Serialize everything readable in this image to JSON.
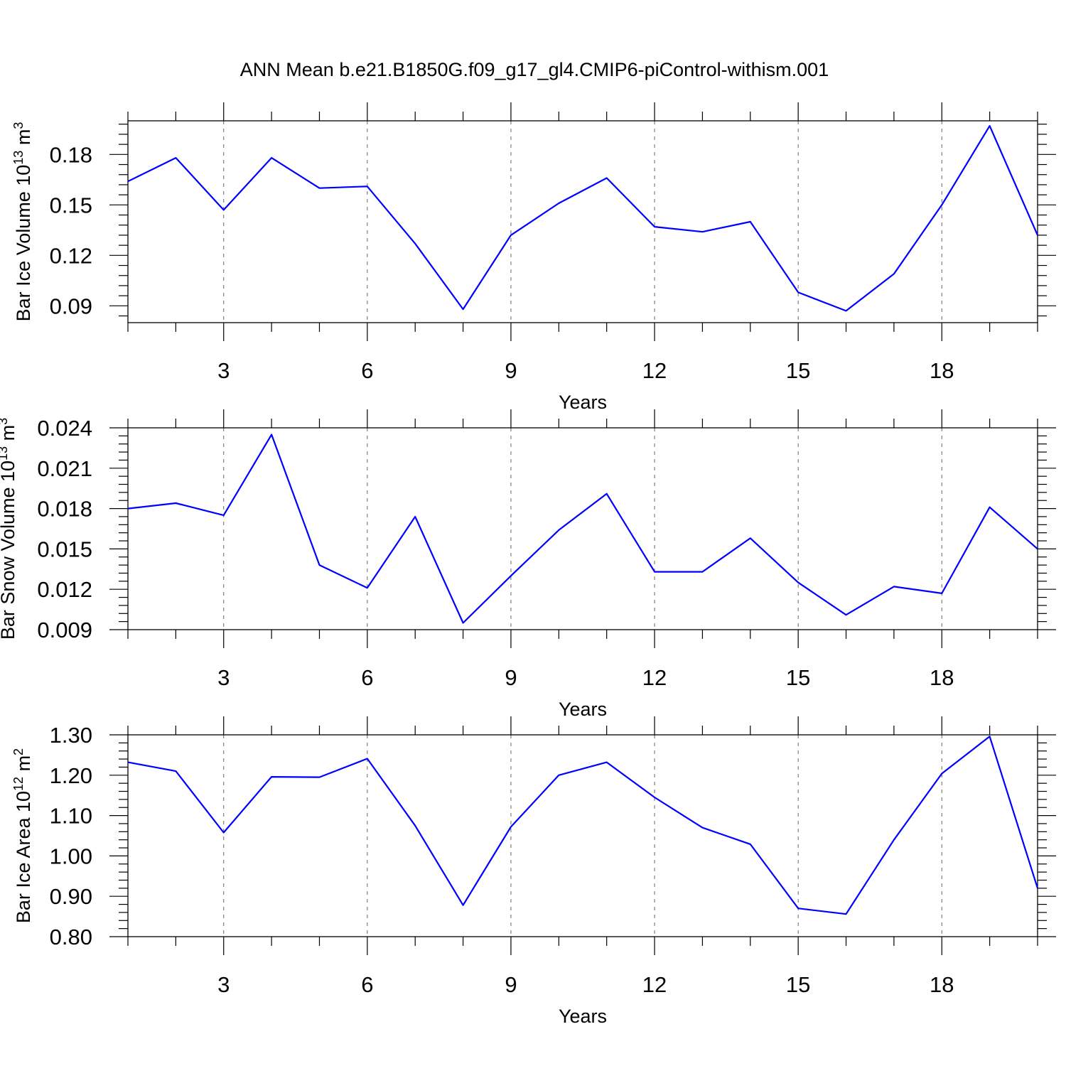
{
  "title": "ANN Mean b.e21.B1850G.f09_g17_gl4.CMIP6-piControl-withism.001",
  "line_color": "#0000ff",
  "chart_data": [
    {
      "type": "line",
      "xlabel": "Years",
      "ylabel_main": "Bar Ice Volume 10",
      "ylabel_exp": "13",
      "ylabel_unit": " m",
      "ylabel_unit_exp": "3",
      "xlim": [
        1,
        20
      ],
      "ylim": [
        0.08,
        0.2
      ],
      "x_ticks": [
        3,
        6,
        9,
        12,
        15,
        18
      ],
      "x_tick_labels": [
        "3",
        "6",
        "9",
        "12",
        "15",
        "18"
      ],
      "y_ticks": [
        0.09,
        0.12,
        0.15,
        0.18
      ],
      "y_tick_labels": [
        "0.09",
        "0.12",
        "0.15",
        "0.18"
      ],
      "x": [
        1,
        2,
        3,
        4,
        5,
        6,
        7,
        8,
        9,
        10,
        11,
        12,
        13,
        14,
        15,
        16,
        17,
        18,
        19,
        20
      ],
      "values": [
        0.164,
        0.178,
        0.147,
        0.178,
        0.16,
        0.161,
        0.127,
        0.088,
        0.132,
        0.151,
        0.166,
        0.137,
        0.134,
        0.14,
        0.098,
        0.087,
        0.109,
        0.15,
        0.197,
        0.132
      ]
    },
    {
      "type": "line",
      "xlabel": "Years",
      "ylabel_main": "Bar Snow Volume 10",
      "ylabel_exp": "13",
      "ylabel_unit": " m",
      "ylabel_unit_exp": "3",
      "xlim": [
        1,
        20
      ],
      "ylim": [
        0.009,
        0.024
      ],
      "x_ticks": [
        3,
        6,
        9,
        12,
        15,
        18
      ],
      "x_tick_labels": [
        "3",
        "6",
        "9",
        "12",
        "15",
        "18"
      ],
      "y_ticks": [
        0.009,
        0.012,
        0.015,
        0.018,
        0.021,
        0.024
      ],
      "y_tick_labels": [
        "0.009",
        "0.012",
        "0.015",
        "0.018",
        "0.021",
        "0.024"
      ],
      "x": [
        1,
        2,
        3,
        4,
        5,
        6,
        7,
        8,
        9,
        10,
        11,
        12,
        13,
        14,
        15,
        16,
        17,
        18,
        19,
        20
      ],
      "values": [
        0.018,
        0.0184,
        0.0175,
        0.0235,
        0.0138,
        0.0121,
        0.0174,
        0.0095,
        0.013,
        0.0164,
        0.0191,
        0.0133,
        0.0133,
        0.0158,
        0.0125,
        0.0101,
        0.0122,
        0.0117,
        0.0181,
        0.015
      ]
    },
    {
      "type": "line",
      "xlabel": "Years",
      "ylabel_main": "Bar Ice Area 10",
      "ylabel_exp": "12",
      "ylabel_unit": " m",
      "ylabel_unit_exp": "2",
      "xlim": [
        1,
        20
      ],
      "ylim": [
        0.8,
        1.3
      ],
      "x_ticks": [
        3,
        6,
        9,
        12,
        15,
        18
      ],
      "x_tick_labels": [
        "3",
        "6",
        "9",
        "12",
        "15",
        "18"
      ],
      "y_ticks": [
        0.8,
        0.9,
        1.0,
        1.1,
        1.2,
        1.3
      ],
      "y_tick_labels": [
        "0.80",
        "0.90",
        "1.00",
        "1.10",
        "1.20",
        "1.30"
      ],
      "x": [
        1,
        2,
        3,
        4,
        5,
        6,
        7,
        8,
        9,
        10,
        11,
        12,
        13,
        14,
        15,
        16,
        17,
        18,
        19,
        20
      ],
      "values": [
        1.232,
        1.21,
        1.058,
        1.196,
        1.195,
        1.241,
        1.075,
        0.878,
        1.072,
        1.2,
        1.232,
        1.145,
        1.07,
        1.029,
        0.87,
        0.856,
        1.04,
        1.204,
        1.296,
        0.92
      ]
    }
  ]
}
